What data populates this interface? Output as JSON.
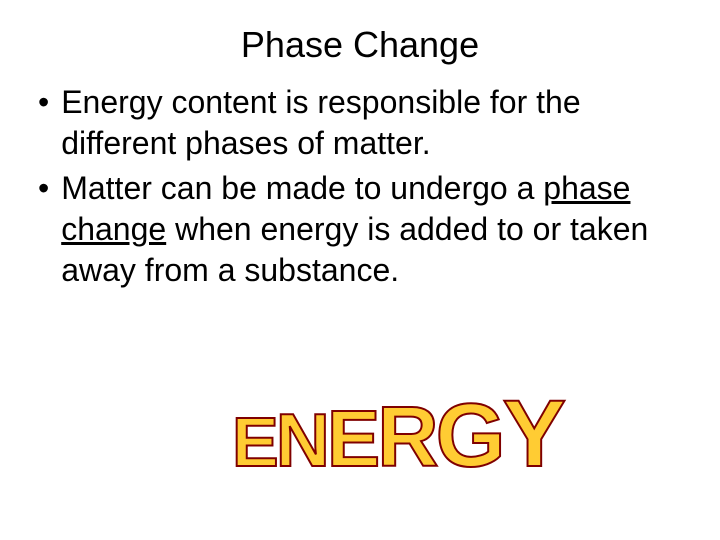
{
  "slide": {
    "title": "Phase Change",
    "bullets": [
      {
        "prefix": "Energy content is responsible for the different phases of matter."
      },
      {
        "prefix": "Matter can be made to undergo a ",
        "underlined": "phase change",
        "suffix": " when energy is added to or taken away from a substance."
      }
    ],
    "wordart": {
      "text": "ENERGY",
      "fill_color": "#ffcc33",
      "stroke_color": "#7f0000",
      "letters": [
        {
          "char": "E",
          "size": 70
        },
        {
          "char": "N",
          "size": 75
        },
        {
          "char": "E",
          "size": 80
        },
        {
          "char": "R",
          "size": 85
        },
        {
          "char": "G",
          "size": 90
        },
        {
          "char": "Y",
          "size": 95
        }
      ]
    },
    "colors": {
      "background": "#ffffff",
      "text": "#000000",
      "wordart_fill": "#ffcc33",
      "wordart_stroke": "#7f0000"
    },
    "typography": {
      "title_fontsize": 36,
      "body_fontsize": 32,
      "font_family": "Arial"
    }
  }
}
